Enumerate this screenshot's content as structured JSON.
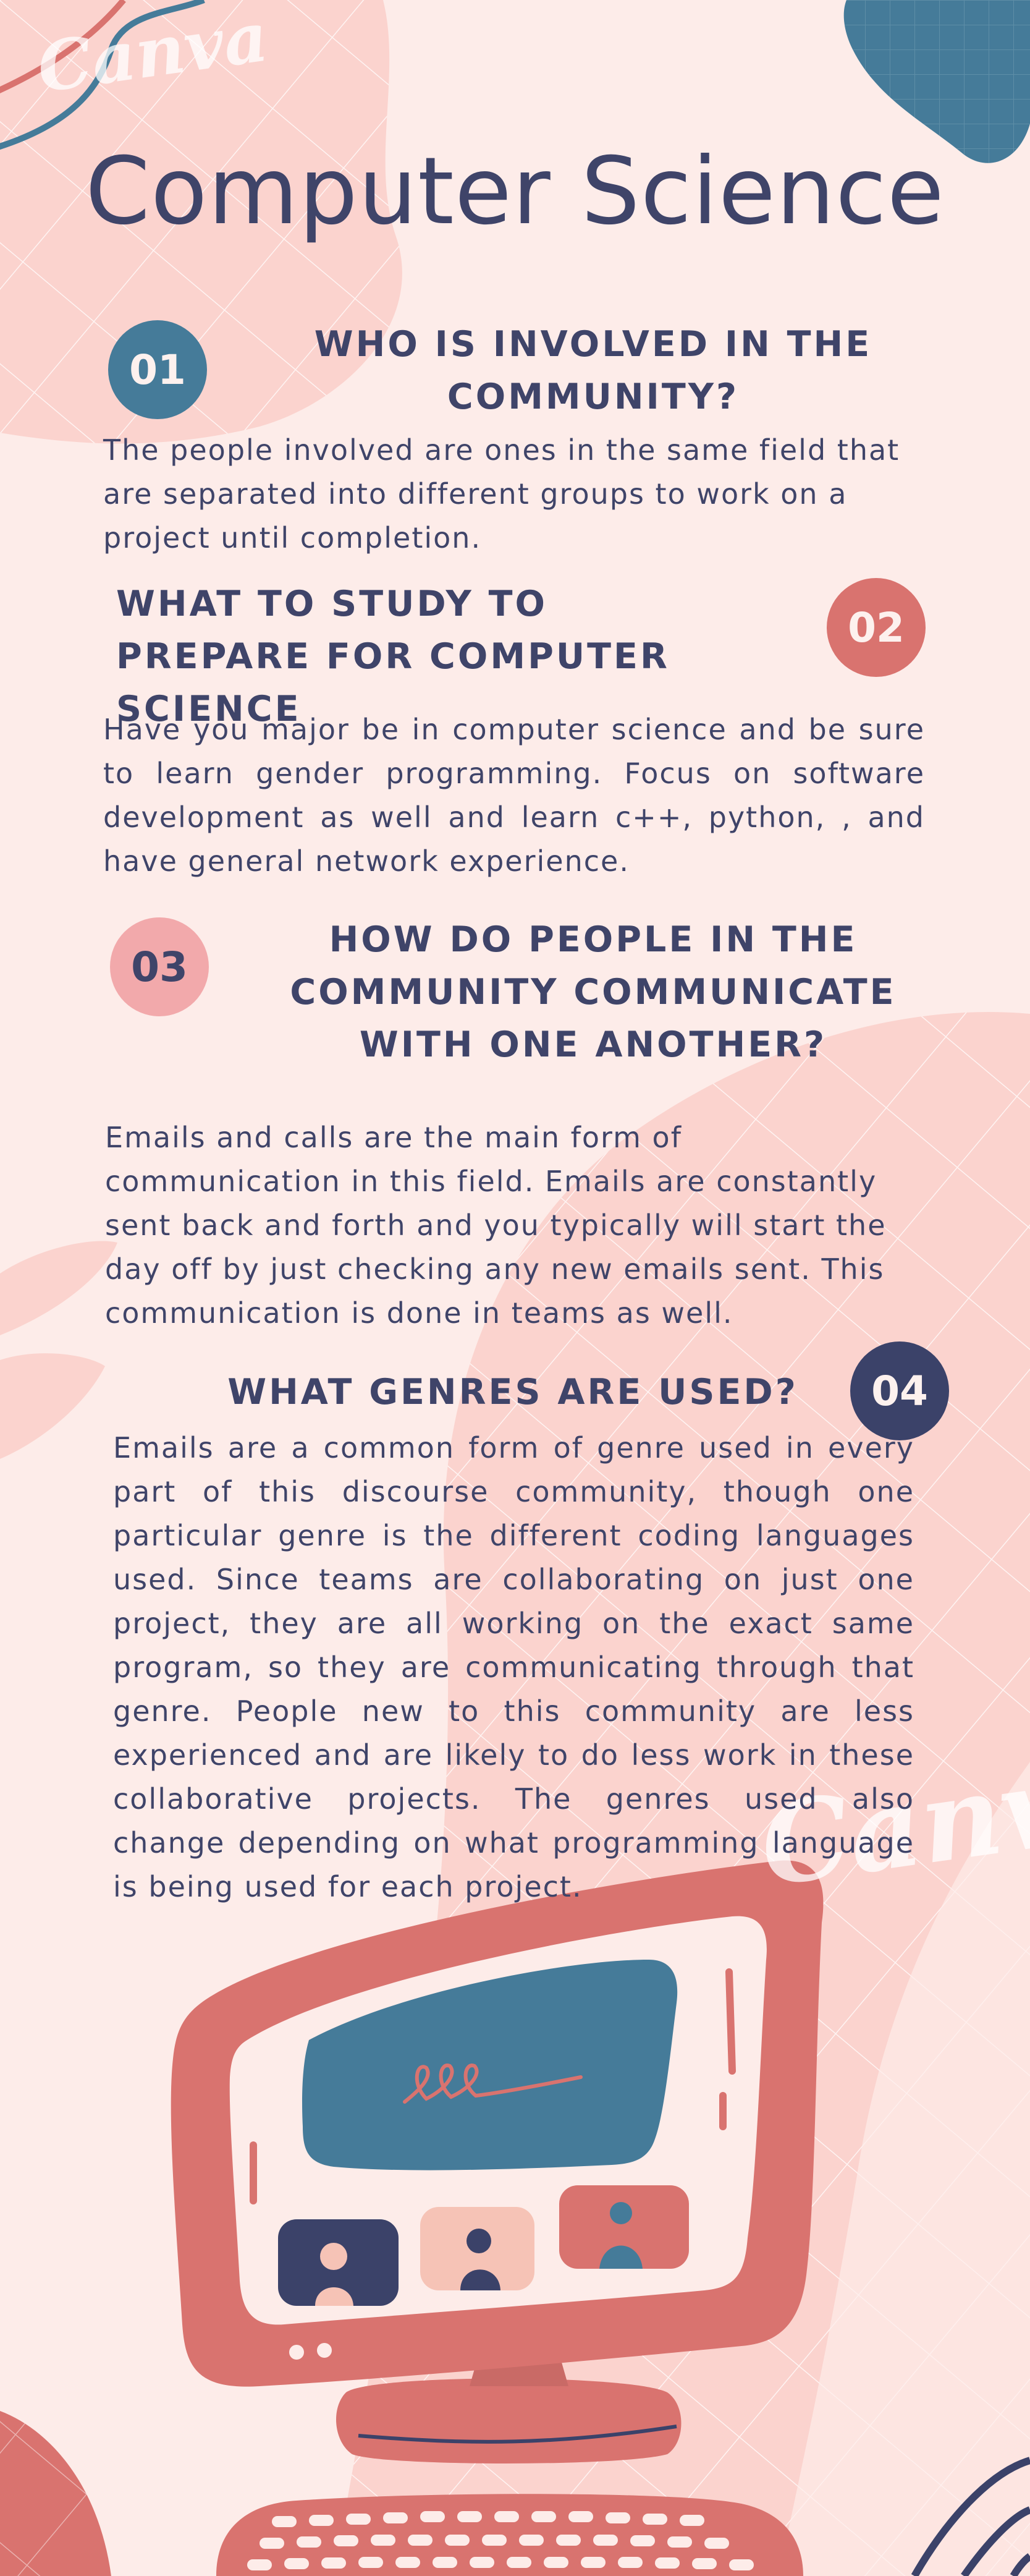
{
  "page": {
    "title": "Computer Science",
    "watermark": "Canva"
  },
  "sections": [
    {
      "number": "01",
      "heading": "WHO IS INVOLVED IN THE COMMUNITY?",
      "body": "The people involved are ones in the same field that are separated into different groups to work on a project until completion."
    },
    {
      "number": "02",
      "heading": "WHAT TO  STUDY TO PREPARE FOR COMPUTER SCIENCE",
      "body": "Have you major be in computer science and be  sure to learn gender programming. Focus on software development as well and learn c++, python, , and have general network experience."
    },
    {
      "number": "03",
      "heading": "HOW DO PEOPLE IN THE COMMUNITY COMMUNICATE WITH ONE ANOTHER?",
      "body": "Emails and calls are the main form of communication in this field. Emails are constantly sent back and forth and you typically will start the day off by just checking any new emails sent. This communication is done in teams as well."
    },
    {
      "number": "04",
      "heading": "WHAT GENRES ARE USED?",
      "body": "Emails are a common form of genre used in every part of this discourse community, though one particular genre is the different coding languages used. Since teams are collaborating on just one  project, they are all working on the exact  same program, so they are communicating through that genre. People new to this community are less experienced and are likely to do less work in these collaborative projects. The genres used also change depending on what programming language is being used for each project."
    }
  ],
  "colors": {
    "background": "#fdece9",
    "navy": "#3f4469",
    "teal": "#457b99",
    "coral": "#d9736f",
    "pink": "#f2a9ab",
    "blob": "#fbd3ce"
  },
  "illustration": "computer-monitor-with-video-call"
}
